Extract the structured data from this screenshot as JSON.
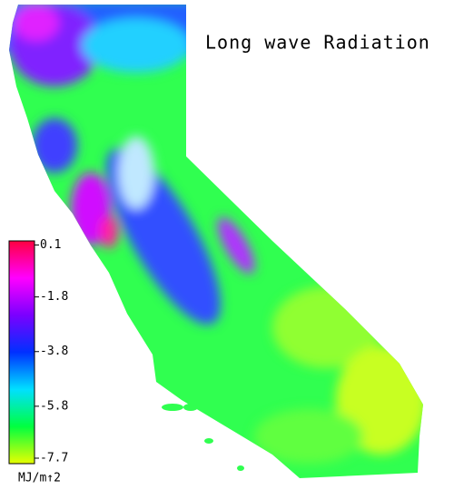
{
  "title": "Long wave Radiation",
  "colorbar": {
    "lim": [
      -7.9,
      0.25
    ],
    "ticks": [
      0.1,
      -1.8,
      -3.8,
      -5.8,
      -7.7
    ],
    "unit": "MJ/m↑2",
    "colors": [
      "#ff0040",
      "#ff00ff",
      "#7a00ff",
      "#0030ff",
      "#00e0ff",
      "#00ff40",
      "#e8ff00"
    ]
  }
}
